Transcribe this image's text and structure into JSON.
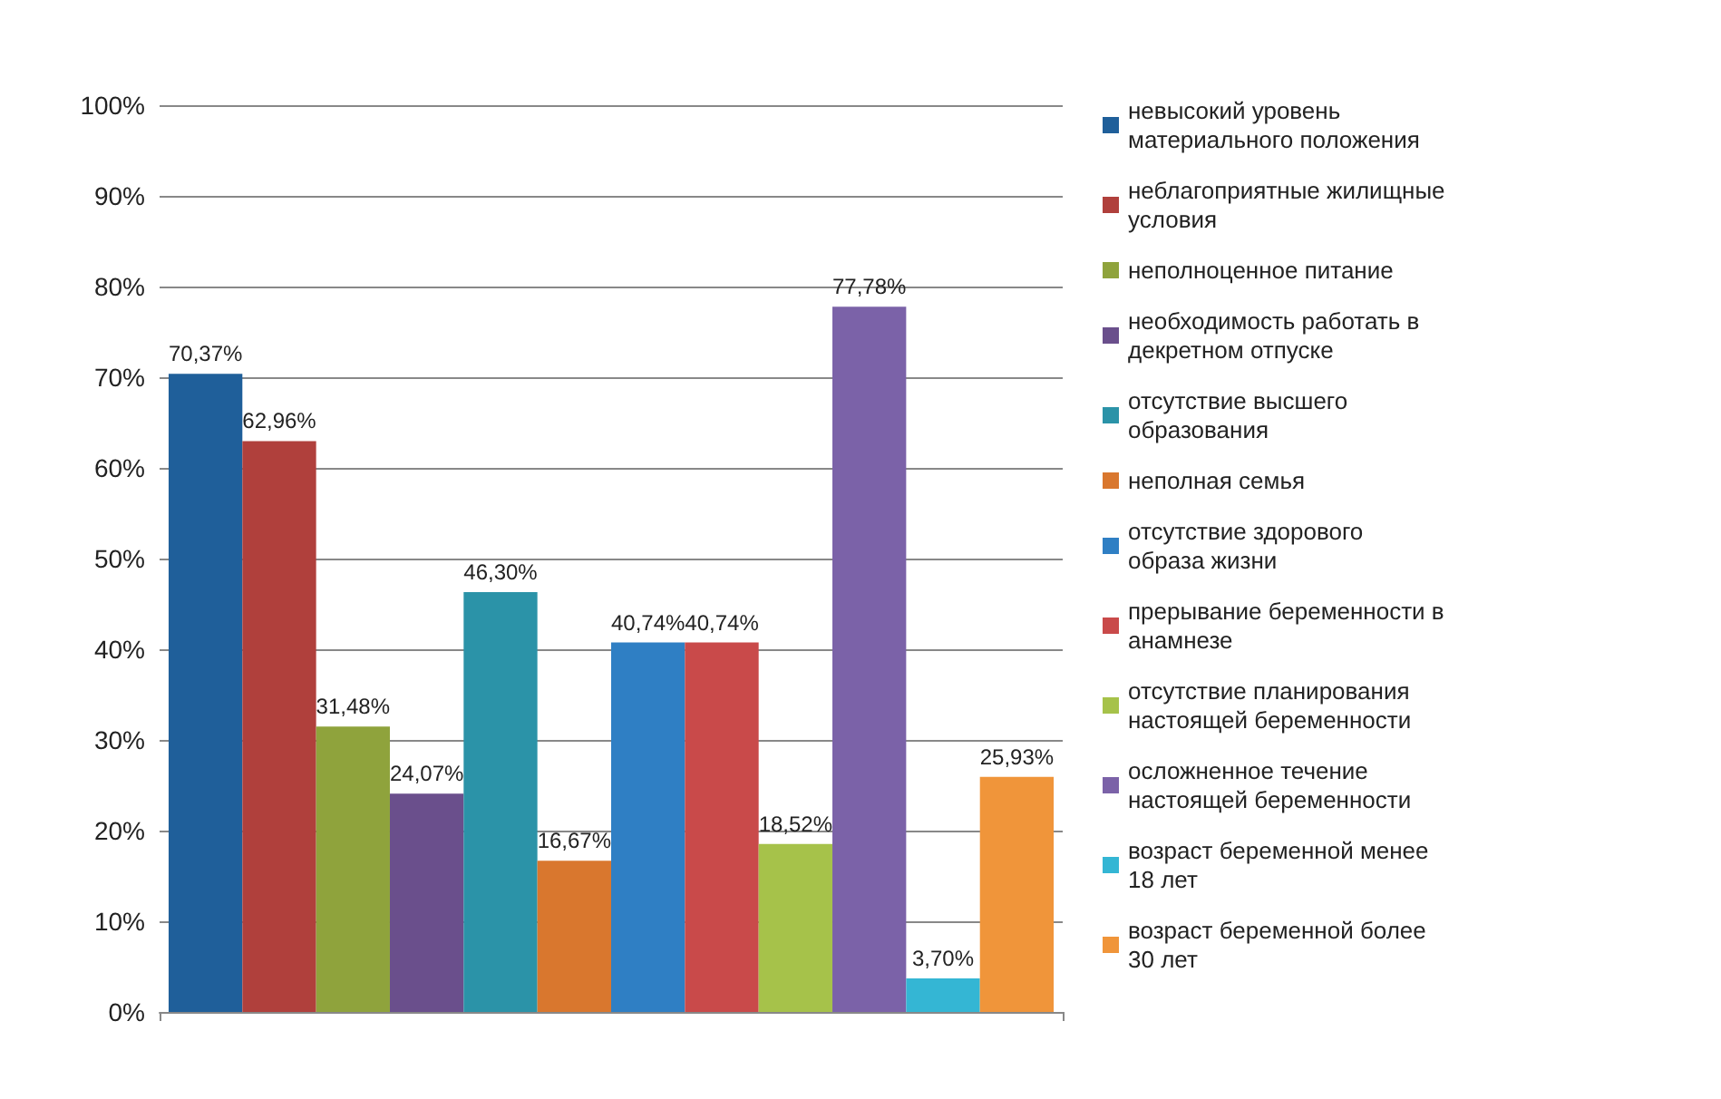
{
  "chart_data": {
    "type": "bar",
    "categories": [
      null
    ],
    "ylim": [
      0,
      100
    ],
    "yticks": [
      {
        "value": 0,
        "label": "0%"
      },
      {
        "value": 10,
        "label": "10%"
      },
      {
        "value": 20,
        "label": "20%"
      },
      {
        "value": 30,
        "label": "30%"
      },
      {
        "value": 40,
        "label": "40%"
      },
      {
        "value": 50,
        "label": "50%"
      },
      {
        "value": 60,
        "label": "60%"
      },
      {
        "value": 70,
        "label": "70%"
      },
      {
        "value": 80,
        "label": "80%"
      },
      {
        "value": 90,
        "label": "90%"
      },
      {
        "value": 100,
        "label": "100%"
      }
    ],
    "grid": "y",
    "legend": "right",
    "series": [
      {
        "name": "невысокий уровень материального положения",
        "color": "#1f5f9a",
        "values": [
          70.37
        ],
        "value_labels": [
          "70,37%"
        ]
      },
      {
        "name": "неблагоприятные жилищные условия",
        "color": "#b0403c",
        "values": [
          62.96
        ],
        "value_labels": [
          "62,96%"
        ]
      },
      {
        "name": "неполноценное питание",
        "color": "#8fa33c",
        "values": [
          31.48
        ],
        "value_labels": [
          "31,48%"
        ]
      },
      {
        "name": "необходимость работать в декретном отпуске",
        "color": "#6a4f8c",
        "values": [
          24.07
        ],
        "value_labels": [
          "24,07%"
        ]
      },
      {
        "name": "отсутствие высшего образования",
        "color": "#2b93a8",
        "values": [
          46.3
        ],
        "value_labels": [
          "46,30%"
        ]
      },
      {
        "name": "неполная семья",
        "color": "#d9772e",
        "values": [
          16.67
        ],
        "value_labels": [
          "16,67%"
        ]
      },
      {
        "name": "отсутствие здорового образа жизни",
        "color": "#2f7fc4",
        "values": [
          40.74
        ],
        "value_labels": [
          "40,74%"
        ]
      },
      {
        "name": "прерывание беременности в анамнезе",
        "color": "#c94a4a",
        "values": [
          40.74
        ],
        "value_labels": [
          "40,74%"
        ]
      },
      {
        "name": "отсутствие планирования настоящей беременности",
        "color": "#a6c24a",
        "values": [
          18.52
        ],
        "value_labels": [
          "18,52%"
        ]
      },
      {
        "name": "осложненное течение настоящей беременности",
        "color": "#7b62a8",
        "values": [
          77.78
        ],
        "value_labels": [
          "77,78%"
        ]
      },
      {
        "name": "возраст беременной менее 18 лет",
        "color": "#34b6d4",
        "values": [
          3.7
        ],
        "value_labels": [
          "3,70%"
        ]
      },
      {
        "name": "возраст беременной более 30 лет",
        "color": "#f0953a",
        "values": [
          25.93
        ],
        "value_labels": [
          "25,93%"
        ]
      }
    ]
  }
}
